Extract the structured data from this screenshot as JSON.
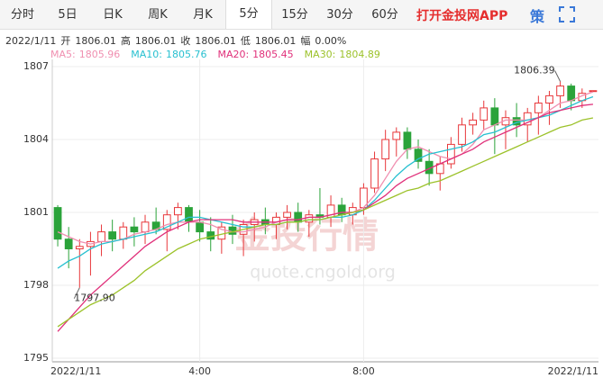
{
  "tabs": [
    "分时",
    "5日",
    "日K",
    "周K",
    "月K",
    "5分",
    "15分",
    "30分",
    "60分"
  ],
  "selected_tab": 5,
  "app_link": "打开金投网APP",
  "strategy": "策",
  "info": {
    "date": "2022/1/11",
    "items": [
      {
        "label": "开",
        "value": 1806.01
      },
      {
        "label": "高",
        "value": 1806.01
      },
      {
        "label": "收",
        "value": 1806.01
      },
      {
        "label": "低",
        "value": 1806.01
      },
      {
        "label": "幅",
        "value": "0.00%"
      }
    ]
  },
  "watermark": {
    "title": "金投行情",
    "url": "quote.cngold.org"
  },
  "chart_data": {
    "type": "candlestick",
    "up_color": "#e8373a",
    "down_color": "#2ba33a",
    "grid": true,
    "ylim": [
      1795,
      1807
    ],
    "yticks": [
      1795,
      1798,
      1801,
      1804,
      1807
    ],
    "categories": [
      "2022/1/11",
      null,
      null,
      null,
      null,
      null,
      null,
      null,
      null,
      null,
      null,
      null,
      null,
      "4:00",
      null,
      null,
      null,
      null,
      null,
      null,
      null,
      null,
      null,
      null,
      null,
      null,
      null,
      null,
      "8:00",
      null,
      null,
      null,
      null,
      null,
      null,
      null,
      null,
      null,
      null,
      null,
      null,
      null,
      null,
      null,
      null,
      null,
      null,
      null,
      null,
      "2022/1/11"
    ],
    "ohlc": [
      [
        1801.2,
        1801.3,
        1799.6,
        1799.9
      ],
      [
        1799.9,
        1800.4,
        1798.7,
        1799.5
      ],
      [
        1799.5,
        1799.9,
        1797.9,
        1799.6
      ],
      [
        1799.6,
        1800.2,
        1798.4,
        1799.8
      ],
      [
        1799.8,
        1800.5,
        1799.2,
        1800.2
      ],
      [
        1800.2,
        1800.7,
        1799.4,
        1799.9
      ],
      [
        1799.9,
        1800.6,
        1799.5,
        1800.4
      ],
      [
        1800.4,
        1800.8,
        1799.6,
        1800.2
      ],
      [
        1800.2,
        1800.9,
        1799.7,
        1800.6
      ],
      [
        1800.6,
        1801.2,
        1800.1,
        1800.3
      ],
      [
        1800.3,
        1801.1,
        1799.4,
        1800.9
      ],
      [
        1800.9,
        1801.4,
        1800.3,
        1801.2
      ],
      [
        1801.2,
        1801.3,
        1800.2,
        1800.6
      ],
      [
        1800.6,
        1801.1,
        1799.8,
        1800.2
      ],
      [
        1800.2,
        1800.8,
        1799.4,
        1799.9
      ],
      [
        1799.9,
        1800.6,
        1799.3,
        1800.4
      ],
      [
        1800.4,
        1800.9,
        1799.7,
        1800.1
      ],
      [
        1800.1,
        1800.7,
        1799.2,
        1800.5
      ],
      [
        1800.5,
        1801.0,
        1799.8,
        1800.7
      ],
      [
        1800.7,
        1801.2,
        1800.1,
        1800.5
      ],
      [
        1800.5,
        1801.0,
        1799.9,
        1800.8
      ],
      [
        1800.8,
        1801.3,
        1800.3,
        1801.0
      ],
      [
        1801.0,
        1801.4,
        1800.2,
        1800.6
      ],
      [
        1800.6,
        1801.1,
        1800.0,
        1800.9
      ],
      [
        1800.9,
        1802.0,
        1800.5,
        1800.8
      ],
      [
        1800.8,
        1801.7,
        1800.4,
        1801.3
      ],
      [
        1801.3,
        1801.6,
        1800.6,
        1800.9
      ],
      [
        1800.9,
        1801.4,
        1800.5,
        1801.2
      ],
      [
        1801.2,
        1802.2,
        1800.9,
        1802.0
      ],
      [
        1802.0,
        1803.5,
        1801.8,
        1803.2
      ],
      [
        1803.2,
        1804.4,
        1802.7,
        1804.0
      ],
      [
        1804.0,
        1804.5,
        1803.3,
        1804.3
      ],
      [
        1804.3,
        1804.5,
        1803.2,
        1803.6
      ],
      [
        1803.6,
        1804.0,
        1802.8,
        1803.1
      ],
      [
        1803.1,
        1803.6,
        1802.1,
        1802.6
      ],
      [
        1802.6,
        1803.3,
        1801.9,
        1803.0
      ],
      [
        1803.0,
        1804.1,
        1802.8,
        1803.8
      ],
      [
        1803.8,
        1804.9,
        1803.5,
        1804.6
      ],
      [
        1804.6,
        1805.1,
        1804.2,
        1804.8
      ],
      [
        1804.8,
        1805.6,
        1804.4,
        1805.3
      ],
      [
        1805.3,
        1805.7,
        1803.4,
        1804.6
      ],
      [
        1804.6,
        1805.2,
        1803.6,
        1804.9
      ],
      [
        1804.9,
        1805.5,
        1804.1,
        1804.6
      ],
      [
        1804.6,
        1805.3,
        1803.9,
        1805.1
      ],
      [
        1805.1,
        1805.8,
        1804.2,
        1805.5
      ],
      [
        1805.5,
        1806.0,
        1804.6,
        1805.8
      ],
      [
        1805.8,
        1806.39,
        1805.3,
        1806.2
      ],
      [
        1806.2,
        1806.3,
        1805.2,
        1805.6
      ],
      [
        1805.6,
        1806.1,
        1805.3,
        1805.9
      ],
      [
        1806.01,
        1806.01,
        1806.01,
        1806.01
      ]
    ],
    "series": [
      {
        "name": "MA5:",
        "color": "#f08fb0",
        "legend_value": 1805.96,
        "values": [
          1800.2,
          1800.0,
          1799.8,
          1799.7,
          1799.8,
          1799.8,
          1799.9,
          1800.1,
          1800.2,
          1800.3,
          1800.5,
          1800.6,
          1800.6,
          1800.6,
          1800.5,
          1800.3,
          1800.2,
          1800.2,
          1800.3,
          1800.4,
          1800.6,
          1800.7,
          1800.7,
          1800.8,
          1800.8,
          1800.9,
          1801.0,
          1801.0,
          1801.2,
          1801.7,
          1802.4,
          1803.1,
          1803.6,
          1803.7,
          1803.5,
          1803.3,
          1803.2,
          1803.4,
          1803.8,
          1804.4,
          1804.6,
          1804.8,
          1804.8,
          1804.8,
          1804.9,
          1805.2,
          1805.5,
          1805.6,
          1805.8,
          1805.96
        ]
      },
      {
        "name": "MA10:",
        "color": "#27c0d0",
        "legend_value": 1805.76,
        "values": [
          1798.7,
          1799.0,
          1799.2,
          1799.5,
          1799.7,
          1799.8,
          1799.9,
          1800.0,
          1800.1,
          1800.2,
          1800.4,
          1800.6,
          1800.8,
          1800.8,
          1800.7,
          1800.6,
          1800.5,
          1800.4,
          1800.4,
          1800.5,
          1800.5,
          1800.6,
          1800.6,
          1800.7,
          1800.7,
          1800.8,
          1800.8,
          1800.9,
          1801.1,
          1801.5,
          1802.0,
          1802.5,
          1802.9,
          1803.2,
          1803.4,
          1803.5,
          1803.6,
          1803.7,
          1803.9,
          1804.2,
          1804.3,
          1804.5,
          1804.7,
          1804.8,
          1804.9,
          1805.0,
          1805.2,
          1805.4,
          1805.6,
          1805.76
        ]
      },
      {
        "name": "MA20:",
        "color": "#e0307a",
        "legend_value": 1805.45,
        "values": [
          1796.1,
          1796.6,
          1797.1,
          1797.6,
          1798.0,
          1798.4,
          1798.8,
          1799.2,
          1799.6,
          1799.9,
          1800.2,
          1800.4,
          1800.6,
          1800.7,
          1800.7,
          1800.7,
          1800.7,
          1800.6,
          1800.6,
          1800.6,
          1800.6,
          1800.7,
          1800.7,
          1800.8,
          1800.8,
          1800.9,
          1801.0,
          1801.0,
          1801.1,
          1801.4,
          1801.7,
          1802.1,
          1802.4,
          1802.6,
          1802.8,
          1803.0,
          1803.2,
          1803.4,
          1803.6,
          1803.9,
          1804.1,
          1804.3,
          1804.5,
          1804.7,
          1804.9,
          1805.1,
          1805.2,
          1805.3,
          1805.4,
          1805.45
        ]
      },
      {
        "name": "MA30:",
        "color": "#9cc22a",
        "legend_value": 1804.89,
        "values": [
          1796.3,
          1796.6,
          1796.9,
          1797.2,
          1797.4,
          1797.6,
          1797.9,
          1798.2,
          1798.6,
          1798.9,
          1799.2,
          1799.5,
          1799.7,
          1799.9,
          1800.0,
          1800.1,
          1800.2,
          1800.3,
          1800.4,
          1800.5,
          1800.5,
          1800.6,
          1800.6,
          1800.7,
          1800.7,
          1800.8,
          1800.9,
          1801.0,
          1801.1,
          1801.3,
          1801.5,
          1801.7,
          1801.9,
          1802.0,
          1802.2,
          1802.3,
          1802.5,
          1802.7,
          1802.9,
          1803.1,
          1803.3,
          1803.5,
          1803.7,
          1803.9,
          1804.1,
          1804.3,
          1804.5,
          1804.6,
          1804.8,
          1804.89
        ]
      }
    ],
    "annotations": [
      {
        "index": 46,
        "value": 1806.39,
        "label": "1806.39"
      },
      {
        "index": 2,
        "value": 1797.9,
        "label": "1797.90"
      }
    ]
  }
}
